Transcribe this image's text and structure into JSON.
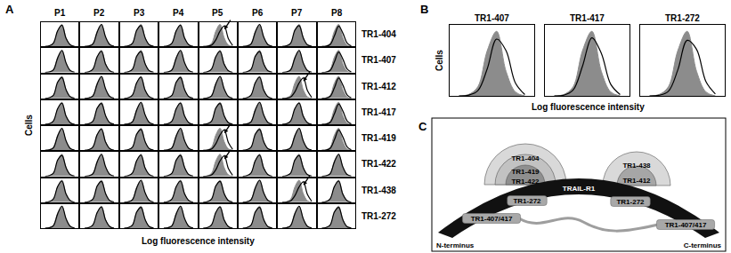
{
  "chart_data": [
    {
      "type": "histogram",
      "panel_label": "A",
      "columns": [
        "P1",
        "P2",
        "P3",
        "P4",
        "P5",
        "P6",
        "P7",
        "P8"
      ],
      "rows": [
        "TR1-404",
        "TR1-407",
        "TR1-412",
        "TR1-417",
        "TR1-419",
        "TR1-422",
        "TR1-438",
        "TR1-272"
      ],
      "x_label": "Log fluorescence intensity",
      "y_label": "Cells",
      "x": [
        1,
        2,
        3,
        4,
        5,
        6,
        7,
        8
      ],
      "xlim": [
        0,
        9
      ],
      "ylim": [
        0,
        110
      ],
      "tick_labels": false,
      "grid": false,
      "control": {
        "color": "#8c8c8c",
        "line_style": "filled",
        "values": [
          0,
          2,
          14,
          70,
          100,
          38,
          6,
          0
        ]
      },
      "antibody": {
        "color": "#000000",
        "line_style": "solid",
        "values": [
          [
            [
              0,
              3,
              16,
              72,
              96,
              36,
              7,
              0
            ],
            [
              0,
              2,
              12,
              66,
              100,
              42,
              8,
              1
            ],
            [
              0,
              3,
              15,
              74,
              94,
              38,
              7,
              1
            ],
            [
              0,
              3,
              16,
              72,
              96,
              36,
              7,
              0
            ],
            [
              0,
              1,
              6,
              30,
              70,
              92,
              34,
              4
            ],
            [
              0,
              2,
              12,
              66,
              100,
              42,
              8,
              1
            ],
            [
              0,
              3,
              15,
              74,
              94,
              38,
              7,
              1
            ],
            [
              0,
              1,
              9,
              48,
              92,
              60,
              16,
              2
            ]
          ],
          [
            [
              0,
              2,
              12,
              66,
              100,
              42,
              8,
              1
            ],
            [
              0,
              3,
              16,
              72,
              96,
              36,
              7,
              0
            ],
            [
              0,
              3,
              15,
              74,
              94,
              38,
              7,
              1
            ],
            [
              0,
              2,
              12,
              66,
              100,
              42,
              8,
              1
            ],
            [
              0,
              3,
              16,
              72,
              96,
              36,
              7,
              0
            ],
            [
              0,
              3,
              15,
              74,
              94,
              38,
              7,
              1
            ],
            [
              0,
              2,
              12,
              66,
              100,
              42,
              8,
              1
            ],
            [
              0,
              1,
              9,
              48,
              92,
              60,
              16,
              2
            ]
          ],
          [
            [
              0,
              3,
              15,
              74,
              94,
              38,
              7,
              1
            ],
            [
              0,
              2,
              12,
              66,
              100,
              42,
              8,
              1
            ],
            [
              0,
              3,
              16,
              72,
              96,
              36,
              7,
              0
            ],
            [
              0,
              3,
              15,
              74,
              94,
              38,
              7,
              1
            ],
            [
              0,
              2,
              12,
              66,
              100,
              42,
              8,
              1
            ],
            [
              0,
              3,
              16,
              72,
              96,
              36,
              7,
              0
            ],
            [
              0,
              1,
              6,
              30,
              70,
              92,
              34,
              4
            ],
            [
              0,
              1,
              9,
              48,
              92,
              60,
              16,
              2
            ]
          ],
          [
            [
              0,
              3,
              16,
              72,
              96,
              36,
              7,
              0
            ],
            [
              0,
              3,
              15,
              74,
              94,
              38,
              7,
              1
            ],
            [
              0,
              2,
              12,
              66,
              100,
              42,
              8,
              1
            ],
            [
              0,
              3,
              16,
              72,
              96,
              36,
              7,
              0
            ],
            [
              0,
              3,
              15,
              74,
              94,
              38,
              7,
              1
            ],
            [
              0,
              2,
              12,
              66,
              100,
              42,
              8,
              1
            ],
            [
              0,
              3,
              16,
              72,
              96,
              36,
              7,
              0
            ],
            [
              0,
              1,
              9,
              48,
              92,
              60,
              16,
              2
            ]
          ],
          [
            [
              0,
              2,
              12,
              66,
              100,
              42,
              8,
              1
            ],
            [
              0,
              3,
              16,
              72,
              96,
              36,
              7,
              0
            ],
            [
              0,
              3,
              15,
              74,
              94,
              38,
              7,
              1
            ],
            [
              0,
              2,
              12,
              66,
              100,
              42,
              8,
              1
            ],
            [
              0,
              1,
              6,
              30,
              70,
              92,
              34,
              4
            ],
            [
              0,
              3,
              15,
              74,
              94,
              38,
              7,
              1
            ],
            [
              0,
              2,
              12,
              66,
              100,
              42,
              8,
              1
            ],
            [
              0,
              1,
              9,
              48,
              92,
              60,
              16,
              2
            ]
          ],
          [
            [
              0,
              3,
              15,
              74,
              94,
              38,
              7,
              1
            ],
            [
              0,
              2,
              12,
              66,
              100,
              42,
              8,
              1
            ],
            [
              0,
              3,
              16,
              72,
              96,
              36,
              7,
              0
            ],
            [
              0,
              3,
              15,
              74,
              94,
              38,
              7,
              1
            ],
            [
              0,
              1,
              6,
              30,
              70,
              92,
              34,
              4
            ],
            [
              0,
              3,
              16,
              72,
              96,
              36,
              7,
              0
            ],
            [
              0,
              3,
              15,
              74,
              94,
              38,
              7,
              1
            ],
            [
              0,
              2,
              12,
              66,
              100,
              42,
              8,
              1
            ]
          ],
          [
            [
              0,
              3,
              16,
              72,
              96,
              36,
              7,
              0
            ],
            [
              0,
              3,
              15,
              74,
              94,
              38,
              7,
              1
            ],
            [
              0,
              2,
              12,
              66,
              100,
              42,
              8,
              1
            ],
            [
              0,
              3,
              16,
              72,
              96,
              36,
              7,
              0
            ],
            [
              0,
              3,
              15,
              74,
              94,
              38,
              7,
              1
            ],
            [
              0,
              2,
              12,
              66,
              100,
              42,
              8,
              1
            ],
            [
              0,
              1,
              6,
              30,
              70,
              92,
              34,
              4
            ],
            [
              0,
              3,
              16,
              72,
              96,
              36,
              7,
              0
            ]
          ],
          [
            [
              0,
              2,
              12,
              66,
              100,
              42,
              8,
              1
            ],
            [
              0,
              3,
              16,
              72,
              96,
              36,
              7,
              0
            ],
            [
              0,
              3,
              15,
              74,
              94,
              38,
              7,
              1
            ],
            [
              0,
              2,
              12,
              66,
              100,
              42,
              8,
              1
            ],
            [
              0,
              3,
              16,
              72,
              96,
              36,
              7,
              0
            ],
            [
              0,
              3,
              15,
              74,
              94,
              38,
              7,
              1
            ],
            [
              0,
              2,
              12,
              66,
              100,
              42,
              8,
              1
            ],
            [
              0,
              3,
              15,
              74,
              94,
              38,
              7,
              1
            ]
          ]
        ]
      },
      "marked": [
        [
          "TR1-404",
          "P5"
        ],
        [
          "TR1-412",
          "P7"
        ],
        [
          "TR1-419",
          "P5"
        ],
        [
          "TR1-422",
          "P5"
        ],
        [
          "TR1-438",
          "P7"
        ]
      ]
    },
    {
      "type": "histogram",
      "panel_label": "B",
      "titles": [
        "TR1-407",
        "TR1-417",
        "TR1-272"
      ],
      "x_label": "Log fluorescence intensity",
      "y_label": "Cells",
      "x": [
        1,
        2,
        3,
        4,
        5,
        6,
        7,
        8
      ],
      "xlim": [
        0,
        9
      ],
      "ylim": [
        0,
        110
      ],
      "tick_labels": false,
      "grid": false,
      "control": {
        "color": "#8c8c8c",
        "line_style": "filled",
        "values": [
          0,
          2,
          14,
          70,
          100,
          38,
          6,
          0
        ]
      },
      "antibody": {
        "color": "#000000",
        "line_style": "solid",
        "values": [
          [
            0,
            1,
            8,
            42,
            88,
            70,
            20,
            2
          ],
          [
            0,
            1,
            9,
            46,
            90,
            66,
            18,
            2
          ],
          [
            0,
            1,
            7,
            40,
            86,
            72,
            22,
            3
          ]
        ]
      }
    }
  ],
  "diagram": {
    "panel_label": "C",
    "protein": "TRAIL-R1",
    "n_terminus": "N-terminus",
    "c_terminus": "C-terminus",
    "left_epitopes": [
      "TR1-404",
      "TR1-419",
      "TR1-422"
    ],
    "right_epitopes": [
      "TR1-438",
      "TR1-412"
    ],
    "linear_epitopes": [
      "TR1-272",
      "TR1-407/417",
      "TR1-272",
      "TR1-407/417"
    ]
  }
}
